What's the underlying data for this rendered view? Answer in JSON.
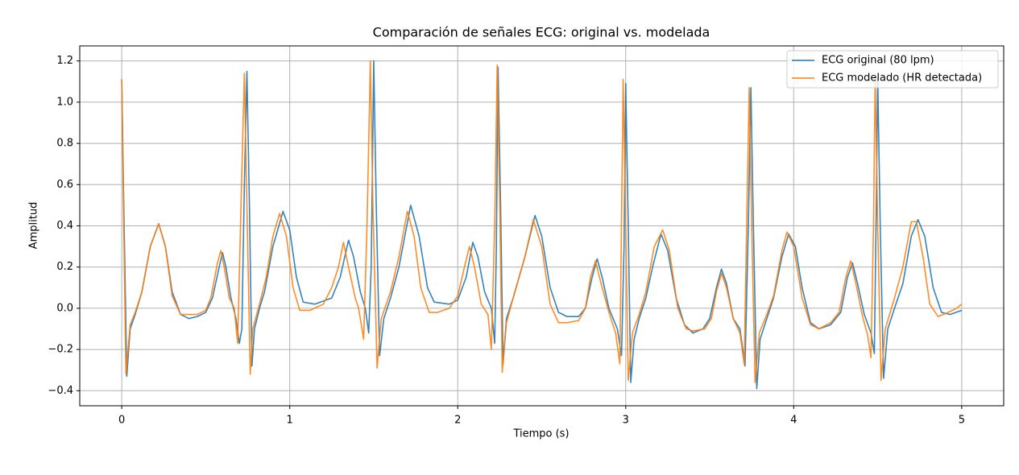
{
  "chart_data": {
    "type": "line",
    "title": "Comparación de señales ECG: original vs. modelada",
    "xlabel": "Tiempo (s)",
    "ylabel": "Amplitud",
    "xlim": [
      -0.25,
      5.25
    ],
    "ylim": [
      -0.473,
      1.273
    ],
    "xticks": [
      0,
      1,
      2,
      3,
      4,
      5
    ],
    "yticks": [
      {
        "value": -0.4,
        "label": "−0.4"
      },
      {
        "value": -0.2,
        "label": "−0.2"
      },
      {
        "value": 0,
        "label": "0.0"
      },
      0.2,
      0.4,
      0.6,
      0.8,
      {
        "value": 1,
        "label": "1.0"
      },
      1.2
    ],
    "grid": true,
    "legend": "upper right",
    "series": [
      {
        "name": "ECG original (80 lpm)",
        "color": "#1f77b4",
        "x": [
          0,
          0.01,
          0.03,
          0.05,
          0.08,
          0.12,
          0.17,
          0.22,
          0.26,
          0.3,
          0.35,
          0.4,
          0.45,
          0.5,
          0.54,
          0.58,
          0.6,
          0.62,
          0.65,
          0.68,
          0.7,
          0.715,
          0.73,
          0.745,
          0.76,
          0.775,
          0.79,
          0.82,
          0.85,
          0.9,
          0.96,
          1.0,
          1.04,
          1.08,
          1.15,
          1.25,
          1.3,
          1.35,
          1.38,
          1.42,
          1.45,
          1.47,
          1.485,
          1.5,
          1.515,
          1.535,
          1.56,
          1.6,
          1.65,
          1.72,
          1.77,
          1.82,
          1.86,
          1.95,
          2.0,
          2.05,
          2.09,
          2.12,
          2.16,
          2.2,
          2.22,
          2.23,
          2.24,
          2.255,
          2.27,
          2.29,
          2.33,
          2.4,
          2.46,
          2.5,
          2.55,
          2.6,
          2.65,
          2.72,
          2.76,
          2.8,
          2.83,
          2.86,
          2.9,
          2.95,
          2.975,
          2.99,
          3.0,
          3.015,
          3.03,
          3.05,
          3.08,
          3.12,
          3.16,
          3.21,
          3.25,
          3.3,
          3.35,
          3.4,
          3.46,
          3.5,
          3.54,
          3.57,
          3.6,
          3.64,
          3.68,
          3.71,
          3.73,
          3.745,
          3.76,
          3.78,
          3.8,
          3.84,
          3.88,
          3.93,
          3.97,
          4.01,
          4.05,
          4.1,
          4.15,
          4.22,
          4.28,
          4.32,
          4.35,
          4.38,
          4.42,
          4.46,
          4.48,
          4.49,
          4.5,
          4.515,
          4.535,
          4.56,
          4.6,
          4.65,
          4.7,
          4.74,
          4.78,
          4.83,
          4.88,
          4.93,
          5.0
        ],
        "values": [
          1.11,
          0.6,
          -0.33,
          -0.1,
          -0.03,
          0.08,
          0.3,
          0.41,
          0.3,
          0.08,
          -0.03,
          -0.05,
          -0.04,
          -0.02,
          0.05,
          0.2,
          0.27,
          0.2,
          0.05,
          -0.05,
          -0.17,
          -0.1,
          0.6,
          1.15,
          0.5,
          -0.28,
          -0.1,
          0.0,
          0.08,
          0.3,
          0.47,
          0.38,
          0.15,
          0.03,
          0.02,
          0.05,
          0.15,
          0.33,
          0.25,
          0.08,
          0.0,
          -0.12,
          0.2,
          1.2,
          0.5,
          -0.23,
          -0.05,
          0.05,
          0.2,
          0.5,
          0.35,
          0.1,
          0.03,
          0.02,
          0.04,
          0.15,
          0.32,
          0.25,
          0.08,
          0.0,
          -0.17,
          0.3,
          1.17,
          0.5,
          -0.27,
          -0.05,
          0.05,
          0.25,
          0.45,
          0.35,
          0.1,
          -0.02,
          -0.04,
          -0.04,
          0.0,
          0.15,
          0.24,
          0.15,
          0.0,
          -0.1,
          -0.23,
          0.3,
          1.09,
          0.4,
          -0.36,
          -0.15,
          -0.05,
          0.05,
          0.2,
          0.36,
          0.28,
          0.05,
          -0.08,
          -0.12,
          -0.1,
          -0.05,
          0.1,
          0.19,
          0.12,
          -0.05,
          -0.1,
          -0.28,
          0.4,
          1.07,
          0.4,
          -0.39,
          -0.15,
          -0.05,
          0.05,
          0.25,
          0.36,
          0.3,
          0.1,
          -0.07,
          -0.1,
          -0.08,
          -0.02,
          0.15,
          0.22,
          0.12,
          -0.03,
          -0.12,
          -0.22,
          0.4,
          1.12,
          0.4,
          -0.34,
          -0.1,
          0.0,
          0.12,
          0.35,
          0.43,
          0.35,
          0.1,
          -0.02,
          -0.03,
          -0.01
        ]
      },
      {
        "name": "ECG modelado (HR detectada)",
        "color": "#ff7f0e",
        "x": [
          0,
          0.01,
          0.025,
          0.05,
          0.08,
          0.12,
          0.17,
          0.22,
          0.26,
          0.3,
          0.35,
          0.4,
          0.45,
          0.5,
          0.53,
          0.57,
          0.59,
          0.61,
          0.64,
          0.67,
          0.69,
          0.71,
          0.73,
          0.745,
          0.765,
          0.78,
          0.82,
          0.86,
          0.9,
          0.94,
          0.98,
          1.02,
          1.06,
          1.12,
          1.2,
          1.25,
          1.29,
          1.32,
          1.35,
          1.39,
          1.41,
          1.44,
          1.46,
          1.48,
          1.495,
          1.52,
          1.545,
          1.6,
          1.65,
          1.7,
          1.74,
          1.78,
          1.83,
          1.88,
          1.95,
          2.0,
          2.04,
          2.07,
          2.1,
          2.14,
          2.18,
          2.2,
          2.22,
          2.235,
          2.25,
          2.265,
          2.29,
          2.33,
          2.4,
          2.45,
          2.5,
          2.55,
          2.6,
          2.65,
          2.72,
          2.76,
          2.79,
          2.82,
          2.85,
          2.9,
          2.94,
          2.965,
          2.985,
          3.0,
          3.015,
          3.04,
          3.08,
          3.12,
          3.17,
          3.22,
          3.26,
          3.31,
          3.36,
          3.4,
          3.47,
          3.51,
          3.54,
          3.57,
          3.6,
          3.64,
          3.68,
          3.705,
          3.72,
          3.735,
          3.75,
          3.77,
          3.795,
          3.84,
          3.88,
          3.93,
          3.96,
          4.0,
          4.05,
          4.1,
          4.15,
          4.22,
          4.27,
          4.31,
          4.34,
          4.37,
          4.41,
          4.44,
          4.46,
          4.475,
          4.485,
          4.5,
          4.52,
          4.545,
          4.6,
          4.65,
          4.7,
          4.73,
          4.77,
          4.81,
          4.86,
          4.92,
          4.97,
          5.0
        ],
        "values": [
          1.11,
          0.5,
          -0.32,
          -0.08,
          -0.02,
          0.08,
          0.3,
          0.41,
          0.3,
          0.06,
          -0.03,
          -0.03,
          -0.03,
          -0.01,
          0.05,
          0.22,
          0.28,
          0.2,
          0.05,
          0.0,
          -0.17,
          0.5,
          1.14,
          0.5,
          -0.32,
          -0.1,
          0.02,
          0.15,
          0.35,
          0.46,
          0.35,
          0.1,
          -0.01,
          -0.01,
          0.02,
          0.1,
          0.2,
          0.32,
          0.2,
          0.05,
          0.0,
          -0.15,
          0.4,
          1.2,
          0.5,
          -0.29,
          -0.05,
          0.08,
          0.25,
          0.47,
          0.35,
          0.1,
          -0.02,
          -0.02,
          0.0,
          0.06,
          0.2,
          0.3,
          0.2,
          0.02,
          -0.03,
          -0.2,
          0.4,
          1.18,
          0.5,
          -0.31,
          -0.07,
          0.05,
          0.25,
          0.43,
          0.3,
          0.02,
          -0.07,
          -0.07,
          -0.06,
          0.0,
          0.15,
          0.23,
          0.13,
          -0.02,
          -0.12,
          -0.27,
          1.11,
          0.4,
          -0.35,
          -0.12,
          -0.03,
          0.08,
          0.3,
          0.38,
          0.28,
          0.0,
          -0.1,
          -0.11,
          -0.1,
          -0.05,
          0.08,
          0.17,
          0.1,
          -0.05,
          -0.12,
          -0.27,
          0.4,
          1.07,
          0.4,
          -0.36,
          -0.12,
          -0.03,
          0.06,
          0.28,
          0.37,
          0.3,
          0.05,
          -0.08,
          -0.1,
          -0.07,
          -0.02,
          0.15,
          0.23,
          0.12,
          -0.04,
          -0.13,
          -0.24,
          0.4,
          1.12,
          0.4,
          -0.35,
          -0.1,
          0.05,
          0.2,
          0.42,
          0.42,
          0.25,
          0.02,
          -0.04,
          -0.02,
          0.0,
          0.02
        ]
      }
    ]
  }
}
